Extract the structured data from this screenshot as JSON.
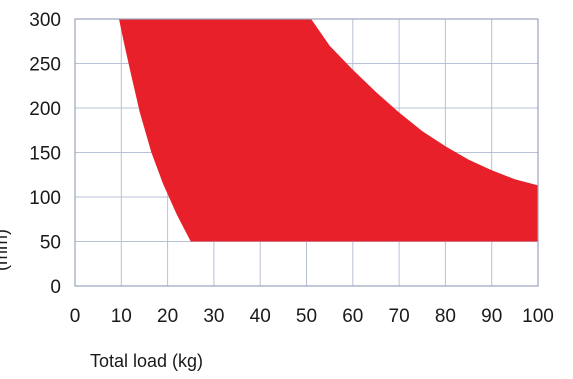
{
  "chart_data": {
    "type": "area",
    "title": "",
    "xlabel": "Total load (kg)",
    "ylabel": "(mm)",
    "xlim": [
      0,
      100
    ],
    "ylim": [
      0,
      300
    ],
    "x_ticks": [
      0,
      10,
      20,
      30,
      40,
      50,
      60,
      70,
      80,
      90,
      100
    ],
    "y_ticks": [
      0,
      50,
      100,
      150,
      200,
      250,
      300
    ],
    "grid": true,
    "fill_color": "#e8202a",
    "region": {
      "left_boundary": [
        {
          "x": 25,
          "y": 50
        },
        {
          "x": 22,
          "y": 80
        },
        {
          "x": 19,
          "y": 115
        },
        {
          "x": 16.5,
          "y": 150
        },
        {
          "x": 14,
          "y": 195
        },
        {
          "x": 12,
          "y": 240
        },
        {
          "x": 10.5,
          "y": 275
        },
        {
          "x": 9.5,
          "y": 300
        }
      ],
      "right_boundary": [
        {
          "x": 51,
          "y": 300
        },
        {
          "x": 55,
          "y": 270
        },
        {
          "x": 60,
          "y": 243
        },
        {
          "x": 65,
          "y": 218
        },
        {
          "x": 70,
          "y": 195
        },
        {
          "x": 75,
          "y": 174
        },
        {
          "x": 80,
          "y": 157
        },
        {
          "x": 85,
          "y": 142
        },
        {
          "x": 90,
          "y": 130
        },
        {
          "x": 95,
          "y": 120
        },
        {
          "x": 100,
          "y": 113
        }
      ],
      "y_min": 50,
      "x_max": 100
    }
  }
}
